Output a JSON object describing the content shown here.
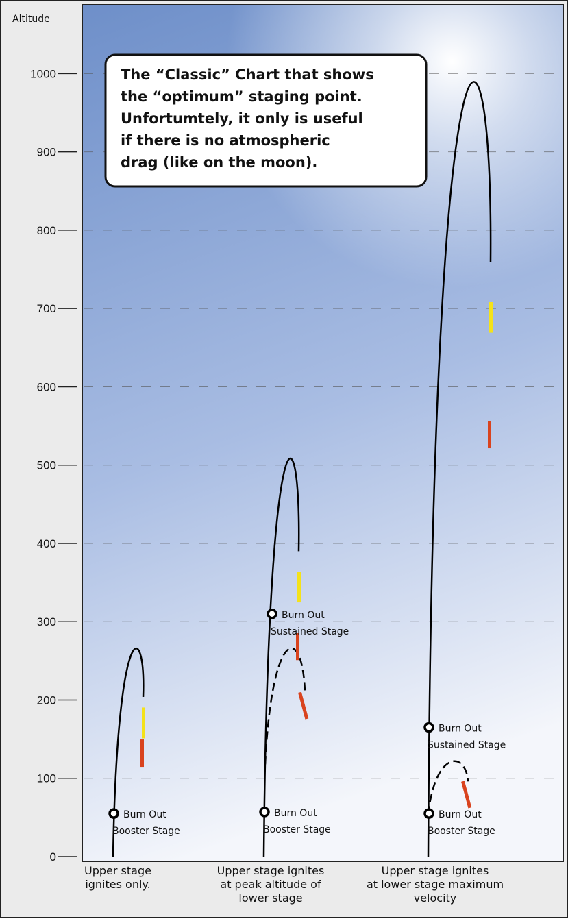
{
  "chart_data": {
    "type": "trajectory",
    "y_label": "Altitude",
    "annotation": [
      "The “Classic” Chart that shows",
      "the “optimum” staging point.",
      "Unfortumtely, it only is useful",
      "if there is no atmospheric",
      "drag (like on the moon)."
    ],
    "ylim": [
      0,
      1087
    ],
    "yticks": [
      0,
      100,
      200,
      300,
      400,
      500,
      600,
      700,
      800,
      900,
      1000
    ],
    "grid": true,
    "categories": [
      [
        "Upper stage",
        "ignites only."
      ],
      [
        "Upper stage ignites",
        "at peak altitude of",
        "lower stage"
      ],
      [
        "Upper stage ignites",
        "at lower stage maximum",
        "velocity"
      ]
    ],
    "series": [
      {
        "peak": 272,
        "burnouts": [
          {
            "lines": [
              "Burn Out",
              "Booster Stage"
            ],
            "altitude": 55
          }
        ]
      },
      {
        "peak": 520,
        "booster_peak": 262,
        "burnouts": [
          {
            "lines": [
              "Burn Out",
              "Booster Stage"
            ],
            "altitude": 57
          },
          {
            "lines": [
              "Burn Out",
              "Sustained Stage"
            ],
            "altitude": 310
          }
        ]
      },
      {
        "peak": 1012,
        "booster_peak": 120,
        "burnouts": [
          {
            "lines": [
              "Burn Out",
              "Booster Stage"
            ],
            "altitude": 55
          },
          {
            "lines": [
              "Burn Out",
              "Sustained Stage"
            ],
            "altitude": 165
          }
        ]
      }
    ]
  }
}
